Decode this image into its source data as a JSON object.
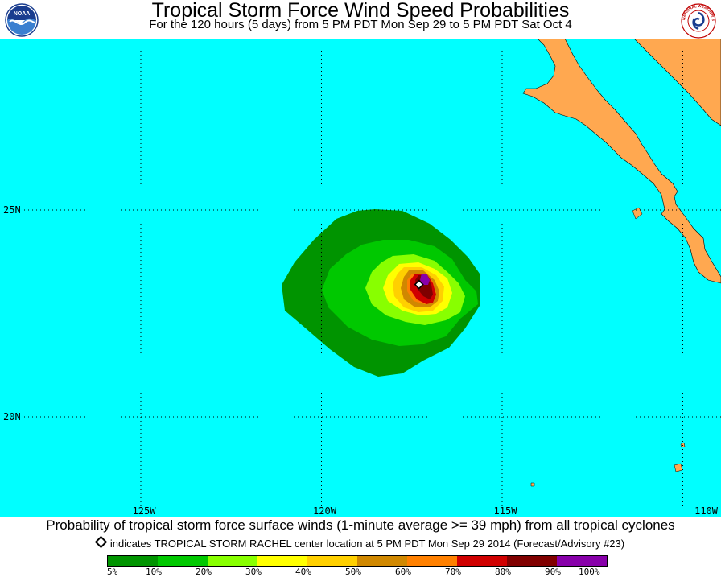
{
  "header": {
    "title": "Tropical Storm Force Wind Speed Probabilities",
    "subtitle": "For the 120 hours (5 days) from 5 PM PDT Mon Sep 29 to 5 PM PDT Sat Oct 4",
    "left_logo": "noaa-logo",
    "left_logo_text": "NOAA",
    "right_logo": "national-weather-service-logo",
    "right_logo_text": "NATIONAL WEATHER SERVICE"
  },
  "map": {
    "ocean_color": "#00ffff",
    "land_color": "#ffa850",
    "lat_labels": [
      {
        "label": "25N",
        "lat": 25
      },
      {
        "label": "20N",
        "lat": 20
      }
    ],
    "lon_labels": [
      {
        "label": "125W",
        "lon": -125
      },
      {
        "label": "120W",
        "lon": -120
      },
      {
        "label": "115W",
        "lon": -115
      },
      {
        "label": "110W",
        "lon": -110
      }
    ],
    "storm_center": {
      "name": "TROPICAL STORM RACHEL",
      "lat": 23.2,
      "lon": -117.3
    }
  },
  "footer": {
    "description": "Probability of tropical storm force surface winds (1-minute average >= 39 mph) from all tropical cyclones",
    "center_note": "indicates TROPICAL STORM RACHEL center location at 5 PM PDT Mon Sep 29 2014 (Forecast/Advisory #23)"
  },
  "legend": {
    "colors": [
      "#009400",
      "#00c800",
      "#88ff00",
      "#ffff00",
      "#ffd000",
      "#d08800",
      "#ff8000",
      "#d00000",
      "#800000",
      "#8800aa"
    ],
    "labels": [
      "5%",
      "10%",
      "20%",
      "30%",
      "40%",
      "50%",
      "60%",
      "70%",
      "80%",
      "90%",
      "100%"
    ]
  }
}
